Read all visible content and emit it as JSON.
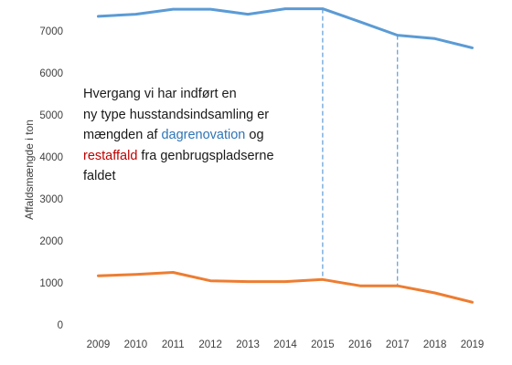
{
  "chart_data": {
    "type": "line",
    "title": "",
    "xlabel": "",
    "ylabel": "Affaldsmængde i ton",
    "x": [
      "2009",
      "2010",
      "2011",
      "2012",
      "2013",
      "2014",
      "2015",
      "2016",
      "2017",
      "2018",
      "2019"
    ],
    "ylim": [
      0,
      7500
    ],
    "yticks": [
      "0",
      "1000",
      "2000",
      "3000",
      "4000",
      "5000",
      "6000",
      "7000"
    ],
    "grid": false,
    "series": [
      {
        "color": "#5b9bd5",
        "values": [
          7350,
          7400,
          7520,
          7520,
          7400,
          7530,
          7530,
          7220,
          6900,
          6820,
          6600
        ]
      },
      {
        "color": "#ed7d31",
        "values": [
          1170,
          1200,
          1250,
          1050,
          1030,
          1030,
          1080,
          930,
          930,
          760,
          540
        ]
      }
    ],
    "reference_lines": [
      {
        "x": "2015",
        "style": "dashed",
        "color": "#5b9bd5"
      },
      {
        "x": "2017",
        "style": "dashed",
        "color": "#5b9bd5"
      }
    ],
    "annotation": {
      "line1": "Hvergang vi har indført en",
      "line2": "ny type husstandsindsamling er",
      "line3_prefix": "mængden af ",
      "line3_blue": "dagrenovation",
      "line3_suffix": " og",
      "line4_red": "restaffald",
      "line4_suffix": " fra genbrugspladserne",
      "line5": "faldet",
      "blue_color": "#2e75b6",
      "red_color": "#c00000"
    }
  }
}
